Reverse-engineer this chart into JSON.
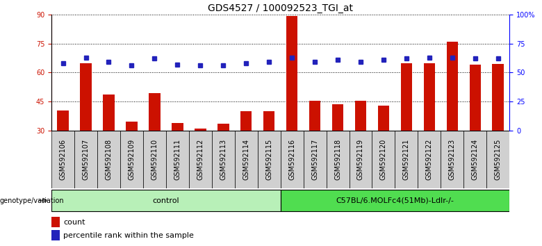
{
  "title": "GDS4527 / 100092523_TGI_at",
  "samples": [
    "GSM592106",
    "GSM592107",
    "GSM592108",
    "GSM592109",
    "GSM592110",
    "GSM592111",
    "GSM592112",
    "GSM592113",
    "GSM592114",
    "GSM592115",
    "GSM592116",
    "GSM592117",
    "GSM592118",
    "GSM592119",
    "GSM592120",
    "GSM592121",
    "GSM592122",
    "GSM592123",
    "GSM592124",
    "GSM592125"
  ],
  "counts": [
    40.5,
    65.0,
    48.5,
    34.5,
    49.5,
    34.0,
    31.0,
    33.5,
    40.0,
    40.0,
    89.5,
    45.5,
    43.5,
    45.5,
    43.0,
    65.0,
    65.0,
    76.0,
    64.0,
    64.5
  ],
  "percentiles": [
    58,
    63,
    59,
    56,
    62,
    57,
    56,
    56,
    58,
    59,
    63,
    59,
    61,
    59,
    61,
    62,
    63,
    63,
    62,
    62
  ],
  "group_labels": [
    "control",
    "C57BL/6.MOLFc4(51Mb)-Ldlr-/-"
  ],
  "ctrl_count": 10,
  "group_colors": [
    "#b8f0b8",
    "#50dd50"
  ],
  "ylim_left": [
    30,
    90
  ],
  "ylim_right": [
    0,
    100
  ],
  "yticks_left": [
    30,
    45,
    60,
    75,
    90
  ],
  "yticks_right": [
    0,
    25,
    50,
    75,
    100
  ],
  "ytick_labels_right": [
    "0",
    "25",
    "50",
    "75",
    "100%"
  ],
  "bar_color": "#cc1100",
  "dot_color": "#2222bb",
  "bg_color": "#ffffff",
  "grid_color": "#000000",
  "legend_count": "count",
  "legend_pct": "percentile rank within the sample",
  "title_fontsize": 10,
  "tick_fontsize": 7,
  "bar_width": 0.5
}
